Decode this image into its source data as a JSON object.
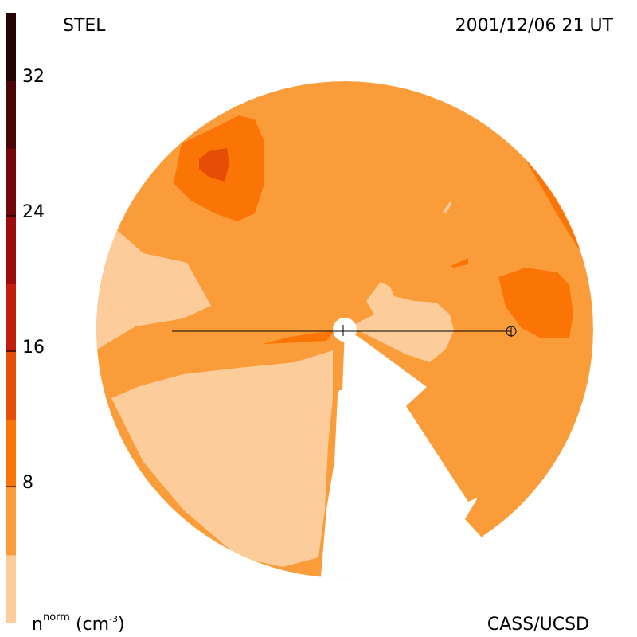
{
  "instrument": "STEL",
  "timestamp": "2001/12/06 21 UT",
  "credit": "CASS/UCSD",
  "colorbar": {
    "unit_base": "n",
    "unit_sup": "norm",
    "unit_open": "(cm",
    "unit_exp": "-3",
    "unit_close": ")",
    "ticks": [
      "8",
      "16",
      "24",
      "32"
    ],
    "levels": [
      "#fccc9a",
      "#fb9c3a",
      "#fb7406",
      "#e54e04",
      "#c21c0c",
      "#9c0c0c",
      "#730808",
      "#4a0606",
      "#260404"
    ]
  },
  "colors": {
    "very_low": "#fccc9a",
    "low": "#fb9c3a",
    "medium": "#fb7406",
    "high": "#e54e04",
    "line": "#000000"
  },
  "symbols": {
    "sun": "sun-disc",
    "earth": "earth-symbol"
  }
}
